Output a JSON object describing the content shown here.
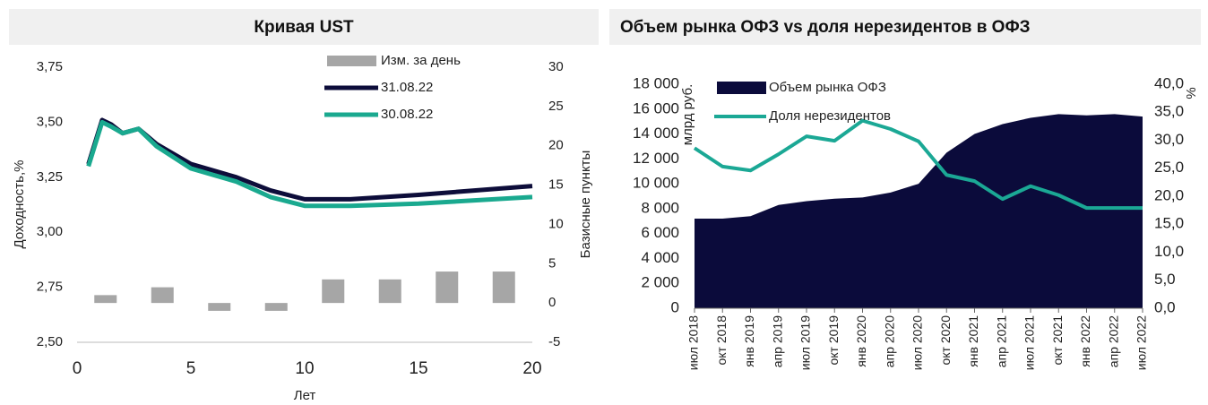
{
  "chart_data": [
    {
      "type": "combo",
      "title": "Кривая UST",
      "xlabel": "Лет",
      "ylabel": "Доходность,%",
      "y2label": "Базисные пункты",
      "xlim": [
        0,
        20
      ],
      "xticks": [
        0,
        5,
        10,
        15,
        20
      ],
      "ylim": [
        2.5,
        3.75
      ],
      "yticks": [
        {
          "value": 2.5,
          "label": "2,50"
        },
        {
          "value": 2.75,
          "label": "2,75"
        },
        {
          "value": 3.0,
          "label": "3,00"
        },
        {
          "value": 3.25,
          "label": "3,25"
        },
        {
          "value": 3.5,
          "label": "3,50"
        },
        {
          "value": 3.75,
          "label": "3,75"
        }
      ],
      "y2lim": [
        -5,
        30
      ],
      "y2ticks": [
        -5,
        0,
        5,
        10,
        15,
        20,
        25,
        30
      ],
      "series": [
        {
          "name": "Изм. за день",
          "type": "bar",
          "axis": "y2",
          "color": "#a6a6a6",
          "x": [
            1.25,
            3.75,
            6.25,
            8.75,
            11.25,
            13.75,
            16.25,
            18.75
          ],
          "values": [
            1,
            2,
            -1,
            -1,
            3,
            3,
            4,
            4
          ]
        },
        {
          "name": "31.08.22",
          "type": "line",
          "color": "#0d0d3a",
          "x": [
            0.5,
            1.1,
            1.5,
            2,
            2.7,
            3.5,
            5,
            6,
            7,
            8.5,
            10,
            12,
            15,
            20
          ],
          "values": [
            3.31,
            3.51,
            3.49,
            3.45,
            3.47,
            3.4,
            3.31,
            3.28,
            3.25,
            3.19,
            3.15,
            3.15,
            3.17,
            3.21
          ]
        },
        {
          "name": "30.08.22",
          "type": "line",
          "color": "#1aa98f",
          "x": [
            0.5,
            1.1,
            1.5,
            2,
            2.7,
            3.5,
            5,
            6,
            7,
            8.5,
            10,
            12,
            15,
            20
          ],
          "values": [
            3.3,
            3.5,
            3.48,
            3.45,
            3.47,
            3.39,
            3.29,
            3.26,
            3.23,
            3.16,
            3.12,
            3.12,
            3.13,
            3.16
          ]
        }
      ]
    },
    {
      "type": "area-line",
      "title": "Объем рынка ОФЗ vs доля нерезидентов в ОФЗ",
      "ylabel": "млрд руб.",
      "y2label": "%",
      "categories": [
        "июл 2018",
        "окт 2018",
        "янв 2019",
        "апр 2019",
        "июл 2019",
        "окт 2019",
        "янв 2020",
        "апр 2020",
        "июл 2020",
        "окт 2020",
        "янв 2021",
        "апр 2021",
        "июл 2021",
        "окт 2021",
        "янв 2022",
        "апр 2022",
        "июл 2022"
      ],
      "ylim": [
        0,
        18000
      ],
      "yticks": [
        0,
        {
          "value": 2000,
          "label": "2 000"
        },
        {
          "value": 4000,
          "label": "4 000"
        },
        {
          "value": 6000,
          "label": "6 000"
        },
        {
          "value": 8000,
          "label": "8 000"
        },
        {
          "value": 10000,
          "label": "10 000"
        },
        {
          "value": 12000,
          "label": "12 000"
        },
        {
          "value": 14000,
          "label": "14 000"
        },
        {
          "value": 16000,
          "label": "16 000"
        },
        {
          "value": 18000,
          "label": "18 000"
        }
      ],
      "y2lim": [
        0,
        40
      ],
      "y2ticks": [
        {
          "value": 0,
          "label": "0,0"
        },
        {
          "value": 5,
          "label": "5,0"
        },
        {
          "value": 10,
          "label": "10,0"
        },
        {
          "value": 15,
          "label": "15,0"
        },
        {
          "value": 20,
          "label": "20,0"
        },
        {
          "value": 25,
          "label": "25,0"
        },
        {
          "value": 30,
          "label": "30,0"
        },
        {
          "value": 35,
          "label": "35,0"
        },
        {
          "value": 40,
          "label": "40,0"
        }
      ],
      "series": [
        {
          "name": "Объем рынка ОФЗ",
          "type": "area",
          "color": "#0b0b3b",
          "values": [
            7200,
            7200,
            7400,
            8300,
            8600,
            8800,
            8900,
            9300,
            10000,
            12500,
            14000,
            14800,
            15300,
            15600,
            15500,
            15600,
            15400
          ]
        },
        {
          "name": "Доля нерезидентов",
          "type": "line",
          "axis": "y2",
          "color": "#1ba895",
          "values": [
            28.6,
            25.3,
            24.6,
            27.5,
            30.7,
            29.9,
            33.5,
            32,
            29.8,
            23.8,
            22.7,
            19.5,
            21.8,
            20.2,
            17.9,
            17.9,
            17.9
          ]
        }
      ]
    }
  ]
}
